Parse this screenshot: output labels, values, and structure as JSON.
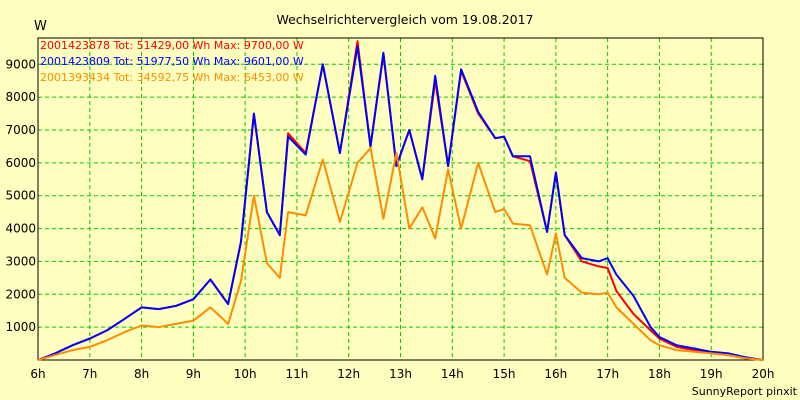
{
  "chart_data": {
    "type": "line",
    "title": "Wechselrichtervergleich vom 19.08.2017",
    "ylabel": "W",
    "xlabel": "",
    "credit": "SunnyReport pinxit",
    "grid": true,
    "legend_position": "top-left",
    "xlim": [
      6,
      20
    ],
    "ylim": [
      0,
      9800
    ],
    "yticks": [
      1000,
      2000,
      3000,
      4000,
      5000,
      6000,
      7000,
      8000,
      9000
    ],
    "xticks": [
      6,
      7,
      8,
      9,
      10,
      11,
      12,
      13,
      14,
      15,
      16,
      17,
      18,
      19,
      20
    ],
    "xtick_labels": [
      "6h",
      "7h",
      "8h",
      "9h",
      "10h",
      "11h",
      "12h",
      "13h",
      "14h",
      "15h",
      "16h",
      "17h",
      "18h",
      "19h",
      "20h"
    ],
    "x": [
      6.0,
      6.33,
      6.67,
      7.0,
      7.33,
      7.67,
      8.0,
      8.33,
      8.67,
      9.0,
      9.33,
      9.67,
      9.92,
      10.17,
      10.42,
      10.67,
      10.83,
      11.17,
      11.5,
      11.83,
      12.17,
      12.42,
      12.67,
      12.92,
      13.17,
      13.42,
      13.67,
      13.92,
      14.17,
      14.5,
      14.83,
      15.0,
      15.17,
      15.5,
      15.83,
      16.0,
      16.17,
      16.5,
      16.83,
      17.0,
      17.17,
      17.5,
      17.83,
      18.0,
      18.33,
      18.67,
      19.0,
      19.33,
      19.67,
      20.0
    ],
    "series": [
      {
        "name": "2001423878 Tot: 51429,00 Wh Max: 9700,00 W",
        "color": "#ff0000",
        "values": [
          0,
          200,
          450,
          650,
          900,
          1250,
          1600,
          1550,
          1650,
          1850,
          2450,
          1700,
          3600,
          7500,
          4500,
          3800,
          6900,
          6300,
          9000,
          6300,
          9700,
          6500,
          9300,
          5900,
          7000,
          5500,
          8500,
          5900,
          8800,
          7500,
          6750,
          6800,
          6200,
          6050,
          3900,
          5700,
          3800,
          3000,
          2850,
          2800,
          2100,
          1400,
          900,
          650,
          400,
          300,
          200,
          150,
          50,
          0
        ]
      },
      {
        "name": "2001423809 Tot: 51977,50 Wh Max: 9601,00 W",
        "color": "#0000ff",
        "values": [
          0,
          200,
          450,
          650,
          900,
          1250,
          1600,
          1550,
          1650,
          1850,
          2450,
          1700,
          3600,
          7500,
          4500,
          3800,
          6800,
          6250,
          9000,
          6300,
          9550,
          6500,
          9350,
          5900,
          7000,
          5500,
          8650,
          5900,
          8850,
          7550,
          6750,
          6800,
          6200,
          6200,
          3900,
          5700,
          3800,
          3100,
          3000,
          3100,
          2600,
          1950,
          1000,
          700,
          450,
          350,
          250,
          200,
          80,
          0
        ]
      },
      {
        "name": "2001393434 Tot: 34592,75 Wh Max: 6453,00 W",
        "color": "#ff8c00",
        "values": [
          0,
          150,
          300,
          400,
          600,
          850,
          1050,
          1000,
          1100,
          1200,
          1600,
          1100,
          2400,
          5000,
          2950,
          2500,
          4500,
          4400,
          6100,
          4200,
          6000,
          6450,
          4300,
          6300,
          4000,
          4650,
          3700,
          5800,
          4000,
          6000,
          4500,
          4600,
          4150,
          4100,
          2600,
          3850,
          2500,
          2050,
          2000,
          2050,
          1600,
          1100,
          600,
          450,
          300,
          250,
          200,
          150,
          50,
          0
        ]
      }
    ]
  }
}
